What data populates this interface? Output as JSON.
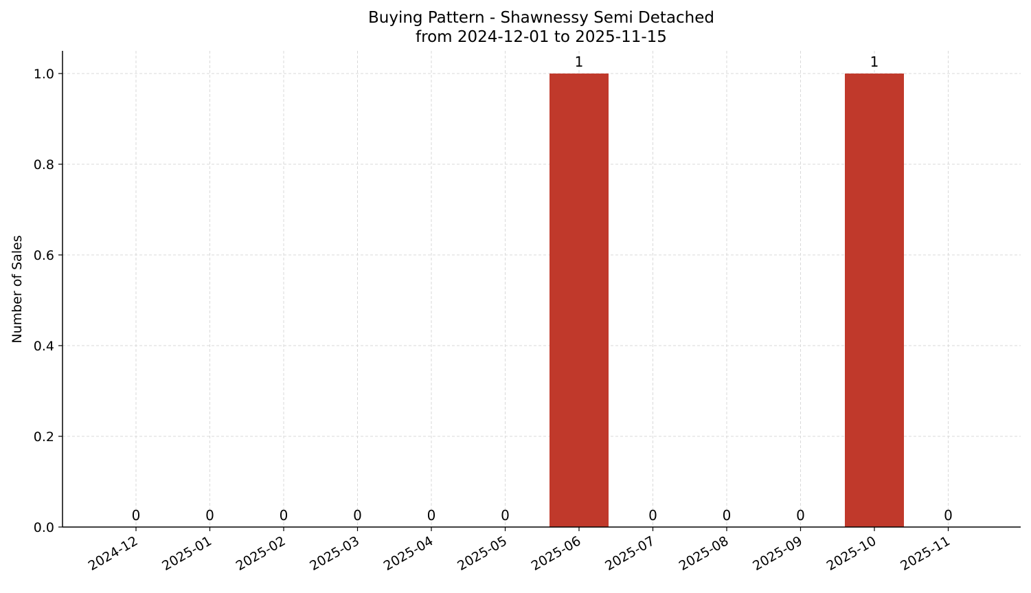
{
  "chart_data": {
    "type": "bar",
    "title": "Buying Pattern - Shawnessy Semi Detached",
    "subtitle": "from 2024-12-01 to 2025-11-15",
    "xlabel": "",
    "ylabel": "Number of Sales",
    "categories": [
      "2024-12",
      "2025-01",
      "2025-02",
      "2025-03",
      "2025-04",
      "2025-05",
      "2025-06",
      "2025-07",
      "2025-08",
      "2025-09",
      "2025-10",
      "2025-11"
    ],
    "values": [
      0,
      0,
      0,
      0,
      0,
      0,
      1,
      0,
      0,
      0,
      1,
      0
    ],
    "data_labels": [
      "0",
      "0",
      "0",
      "0",
      "0",
      "0",
      "1",
      "0",
      "0",
      "0",
      "1",
      "0"
    ],
    "ylim": [
      0,
      1.05
    ],
    "y_ticks": [
      "0.0",
      "0.2",
      "0.4",
      "0.6",
      "0.8",
      "1.0"
    ],
    "grid": true,
    "bar_color": "#c0392b",
    "grid_color": "#d9d9d9"
  }
}
